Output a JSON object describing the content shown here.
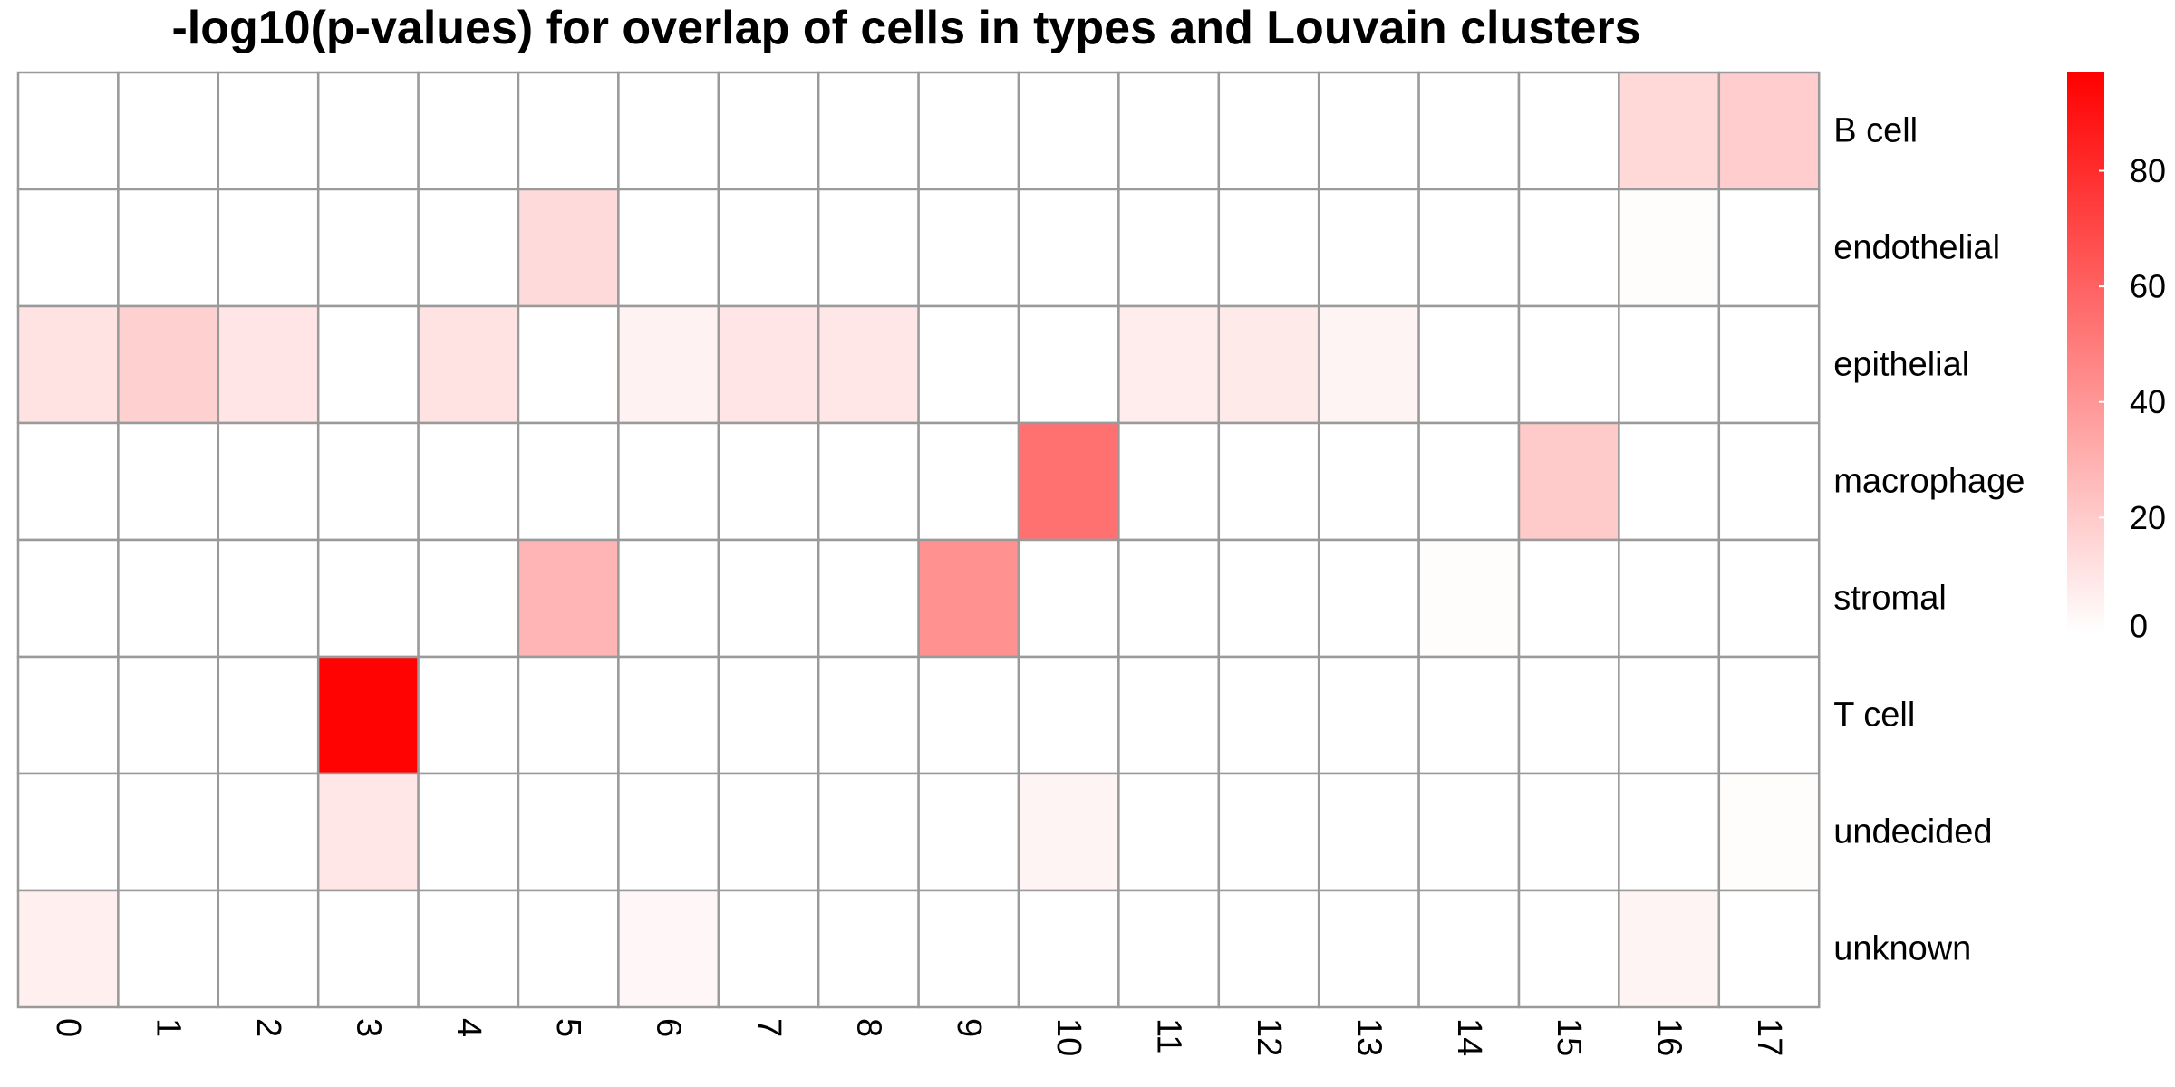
{
  "chart_data": {
    "type": "heatmap",
    "title": "-log10(p-values) for overlap of cells in types and Louvain clusters",
    "columns": [
      "0",
      "1",
      "2",
      "3",
      "4",
      "5",
      "6",
      "7",
      "8",
      "9",
      "10",
      "11",
      "12",
      "13",
      "14",
      "15",
      "16",
      "17"
    ],
    "rows": [
      "B cell",
      "endothelial",
      "epithelial",
      "macrophage",
      "stromal",
      "T cell",
      "undecided",
      "unknown"
    ],
    "values": [
      [
        0,
        0,
        0,
        0,
        0,
        0,
        0,
        0,
        0,
        0,
        0,
        0,
        0,
        0,
        0,
        0,
        15,
        19
      ],
      [
        0,
        0,
        0,
        0,
        0,
        14,
        0,
        0,
        0,
        0,
        0,
        0,
        0,
        0,
        0,
        0,
        1,
        0
      ],
      [
        11,
        18,
        10,
        0,
        11,
        0,
        5,
        10,
        9,
        0,
        0,
        7,
        8,
        4,
        0,
        0,
        0,
        0
      ],
      [
        0,
        0,
        0,
        0,
        0,
        0,
        0,
        0,
        0,
        0,
        54,
        0,
        0,
        0,
        0,
        20,
        0,
        0
      ],
      [
        0,
        0,
        0,
        0,
        0,
        28,
        0,
        0,
        0,
        42,
        0,
        0,
        0,
        0,
        1,
        0,
        0,
        0
      ],
      [
        0,
        0,
        0,
        96,
        0,
        0,
        0,
        0,
        0,
        0,
        0,
        0,
        0,
        0,
        0,
        0,
        0,
        0
      ],
      [
        0,
        0,
        0,
        9,
        0,
        0,
        0,
        0,
        0,
        0,
        4,
        0,
        0,
        0,
        0,
        0,
        0,
        1
      ],
      [
        6,
        0,
        0,
        0,
        0,
        0,
        3,
        0,
        0,
        0,
        0,
        0,
        0,
        0,
        0,
        0,
        4,
        0
      ]
    ],
    "color_scale": {
      "low_color": "#ffffff",
      "high_color": "#ff0000",
      "min": 0,
      "max": 97,
      "ticks": [
        "0",
        "20",
        "40",
        "60",
        "80"
      ],
      "tick_values": [
        0,
        20,
        40,
        60,
        80
      ]
    },
    "legend_placement": "right",
    "grid_color": "#9a9a9a"
  }
}
